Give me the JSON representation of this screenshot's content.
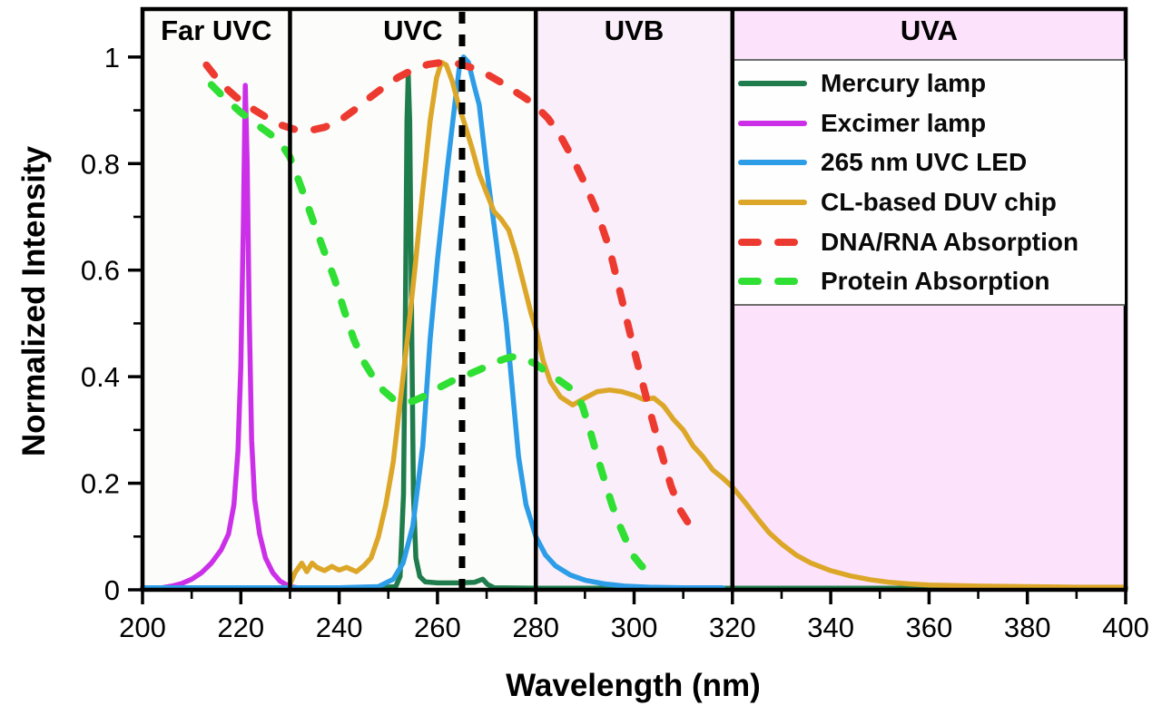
{
  "figure": {
    "x_axis_title": "Wavelength (nm)",
    "y_axis_title": "Normalized Intensity"
  },
  "regions": [
    {
      "label": "Far UVC",
      "from": 200,
      "to": 230,
      "fill": "#fcfcfa"
    },
    {
      "label": "UVC",
      "from": 230,
      "to": 280,
      "fill": "#fcfcfa"
    },
    {
      "label": "UVB",
      "from": 280,
      "to": 320,
      "fill": "#f9eef9"
    },
    {
      "label": "UVA",
      "from": 320,
      "to": 400,
      "fill": "#fce3fb"
    }
  ],
  "legend": {
    "items": [
      {
        "label": "Mercury lamp",
        "color": "#1f7d4d",
        "dashed": false
      },
      {
        "label": "Excimer lamp",
        "color": "#cb30e8",
        "dashed": false
      },
      {
        "label": "265 nm UVC LED",
        "color": "#2d9de8",
        "dashed": false
      },
      {
        "label": "CL-based DUV chip",
        "color": "#dca728",
        "dashed": false
      },
      {
        "label": "DNA/RNA Absorption",
        "color": "#ed3a30",
        "dashed": true
      },
      {
        "label": "Protein Absorption",
        "color": "#2fdf33",
        "dashed": true
      }
    ]
  },
  "chart_data": {
    "type": "line",
    "title": "",
    "xlabel": "Wavelength (nm)",
    "ylabel": "Normalized Intensity",
    "x_range": [
      200,
      400
    ],
    "y_range": [
      0,
      1.09
    ],
    "grid": false,
    "legend_position": "upper right",
    "x_major_ticks": [
      200,
      220,
      240,
      260,
      280,
      300,
      320,
      340,
      360,
      380,
      400
    ],
    "x_minor_ticks": [
      210,
      230,
      250,
      270,
      290,
      310,
      330,
      350,
      370,
      390
    ],
    "y_major_tick_values": [
      0,
      0.2,
      0.4,
      0.6,
      0.8,
      1
    ],
    "y_major_tick_labels": [
      "0",
      "0.2",
      "0.4",
      "0.6",
      "0.8",
      "1"
    ],
    "y_minor_ticks": [
      0.1,
      0.3,
      0.5,
      0.7,
      0.9
    ],
    "region_boundaries_nm": [
      230,
      280,
      320
    ],
    "reference_line": {
      "x": 265,
      "style": "dotted",
      "color": "#000000"
    },
    "series": [
      {
        "name": "Mercury lamp",
        "color": "#1f7d4d",
        "dashed": false,
        "width": 5.5,
        "points": [
          [
            246,
            0.003
          ],
          [
            251.5,
            0.006
          ],
          [
            252.4,
            0.025
          ],
          [
            253.1,
            0.18
          ],
          [
            253.5,
            0.55
          ],
          [
            253.8,
            0.88
          ],
          [
            254.05,
            0.967
          ],
          [
            254.35,
            0.88
          ],
          [
            254.7,
            0.55
          ],
          [
            255.1,
            0.18
          ],
          [
            255.6,
            0.06
          ],
          [
            256.4,
            0.025
          ],
          [
            257.5,
            0.015
          ],
          [
            260,
            0.013
          ],
          [
            264,
            0.013
          ],
          [
            267.5,
            0.014
          ],
          [
            269.2,
            0.02
          ],
          [
            270.2,
            0.01
          ],
          [
            271.5,
            0.004
          ],
          [
            280,
            0.003
          ],
          [
            320,
            0.003
          ],
          [
            360,
            0.003
          ],
          [
            400,
            0.003
          ]
        ]
      },
      {
        "name": "Excimer lamp",
        "color": "#cb30e8",
        "dashed": false,
        "width": 5.5,
        "points": [
          [
            200,
            0.003
          ],
          [
            204,
            0.004
          ],
          [
            206,
            0.007
          ],
          [
            208,
            0.012
          ],
          [
            210,
            0.02
          ],
          [
            212,
            0.032
          ],
          [
            214,
            0.05
          ],
          [
            216,
            0.075
          ],
          [
            217.5,
            0.105
          ],
          [
            218.6,
            0.16
          ],
          [
            219.4,
            0.26
          ],
          [
            220,
            0.42
          ],
          [
            220.5,
            0.68
          ],
          [
            220.9,
            0.947
          ],
          [
            221.3,
            0.8
          ],
          [
            221.7,
            0.52
          ],
          [
            222.2,
            0.28
          ],
          [
            222.8,
            0.17
          ],
          [
            223.8,
            0.105
          ],
          [
            225,
            0.06
          ],
          [
            226.5,
            0.032
          ],
          [
            228,
            0.016
          ],
          [
            230,
            0.006
          ],
          [
            232,
            0.003
          ]
        ]
      },
      {
        "name": "265 nm UVC LED",
        "color": "#2d9de8",
        "dashed": false,
        "width": 5.5,
        "points": [
          [
            200,
            0.004
          ],
          [
            240,
            0.004
          ],
          [
            248,
            0.006
          ],
          [
            251,
            0.02
          ],
          [
            253,
            0.05
          ],
          [
            255,
            0.12
          ],
          [
            257,
            0.27
          ],
          [
            258.5,
            0.47
          ],
          [
            260,
            0.62
          ],
          [
            262,
            0.79
          ],
          [
            263.5,
            0.91
          ],
          [
            264.5,
            0.985
          ],
          [
            265.3,
            1.0
          ],
          [
            266.3,
            0.99
          ],
          [
            267.5,
            0.945
          ],
          [
            268.5,
            0.91
          ],
          [
            270,
            0.79
          ],
          [
            272,
            0.65
          ],
          [
            274,
            0.5
          ],
          [
            275.5,
            0.35
          ],
          [
            276.5,
            0.25
          ],
          [
            278,
            0.16
          ],
          [
            280,
            0.1
          ],
          [
            282,
            0.065
          ],
          [
            284,
            0.045
          ],
          [
            287,
            0.028
          ],
          [
            290,
            0.018
          ],
          [
            294,
            0.011
          ],
          [
            298,
            0.007
          ],
          [
            303,
            0.005
          ],
          [
            310,
            0.004
          ],
          [
            318,
            0.004
          ]
        ]
      },
      {
        "name": "CL-based DUV chip",
        "color": "#dca728",
        "dashed": false,
        "width": 5.5,
        "points": [
          [
            230,
            0.01
          ],
          [
            231,
            0.032
          ],
          [
            232.4,
            0.05
          ],
          [
            233.4,
            0.034
          ],
          [
            234.5,
            0.05
          ],
          [
            235.5,
            0.042
          ],
          [
            237,
            0.036
          ],
          [
            238.5,
            0.044
          ],
          [
            240,
            0.037
          ],
          [
            241.5,
            0.042
          ],
          [
            243.5,
            0.034
          ],
          [
            245,
            0.045
          ],
          [
            246.5,
            0.06
          ],
          [
            248,
            0.1
          ],
          [
            249.5,
            0.16
          ],
          [
            251,
            0.24
          ],
          [
            252.5,
            0.36
          ],
          [
            254,
            0.48
          ],
          [
            255.5,
            0.61
          ],
          [
            257,
            0.75
          ],
          [
            258.5,
            0.88
          ],
          [
            259.8,
            0.96
          ],
          [
            260.8,
            0.99
          ],
          [
            261.8,
            0.985
          ],
          [
            263,
            0.955
          ],
          [
            264.3,
            0.91
          ],
          [
            265.5,
            0.875
          ],
          [
            267,
            0.83
          ],
          [
            268.5,
            0.78
          ],
          [
            270,
            0.745
          ],
          [
            271.5,
            0.71
          ],
          [
            273,
            0.695
          ],
          [
            274.5,
            0.675
          ],
          [
            276,
            0.63
          ],
          [
            277.5,
            0.575
          ],
          [
            279,
            0.52
          ],
          [
            280,
            0.49
          ],
          [
            281.5,
            0.43
          ],
          [
            283,
            0.39
          ],
          [
            285,
            0.362
          ],
          [
            287.5,
            0.347
          ],
          [
            290,
            0.36
          ],
          [
            292.5,
            0.372
          ],
          [
            295,
            0.375
          ],
          [
            297.5,
            0.372
          ],
          [
            300,
            0.365
          ],
          [
            302,
            0.357
          ],
          [
            304,
            0.36
          ],
          [
            306,
            0.345
          ],
          [
            308,
            0.32
          ],
          [
            310,
            0.3
          ],
          [
            312,
            0.27
          ],
          [
            314,
            0.25
          ],
          [
            316,
            0.225
          ],
          [
            318,
            0.21
          ],
          [
            320,
            0.193
          ],
          [
            322.5,
            0.165
          ],
          [
            325,
            0.135
          ],
          [
            327.5,
            0.107
          ],
          [
            330,
            0.086
          ],
          [
            333,
            0.065
          ],
          [
            336,
            0.05
          ],
          [
            340,
            0.036
          ],
          [
            344,
            0.026
          ],
          [
            348,
            0.019
          ],
          [
            352,
            0.014
          ],
          [
            356,
            0.011
          ],
          [
            360,
            0.009
          ],
          [
            370,
            0.007
          ],
          [
            380,
            0.006
          ],
          [
            390,
            0.005
          ],
          [
            400,
            0.005
          ]
        ]
      },
      {
        "name": "DNA/RNA Absorption",
        "color": "#ed3a30",
        "dashed": true,
        "width": 8,
        "points": [
          [
            213,
            0.985
          ],
          [
            216,
            0.95
          ],
          [
            219,
            0.925
          ],
          [
            222,
            0.905
          ],
          [
            225,
            0.888
          ],
          [
            228,
            0.873
          ],
          [
            231,
            0.864
          ],
          [
            234,
            0.862
          ],
          [
            237,
            0.868
          ],
          [
            240,
            0.88
          ],
          [
            243,
            0.9
          ],
          [
            246,
            0.922
          ],
          [
            249,
            0.943
          ],
          [
            252,
            0.962
          ],
          [
            255,
            0.976
          ],
          [
            258,
            0.986
          ],
          [
            261,
            0.99
          ],
          [
            264,
            0.988
          ],
          [
            267,
            0.98
          ],
          [
            270,
            0.968
          ],
          [
            273,
            0.952
          ],
          [
            276,
            0.934
          ],
          [
            278,
            0.922
          ],
          [
            280,
            0.908
          ],
          [
            282.5,
            0.885
          ],
          [
            285,
            0.852
          ],
          [
            287.5,
            0.81
          ],
          [
            290,
            0.762
          ],
          [
            292.5,
            0.708
          ],
          [
            295,
            0.64
          ],
          [
            297.5,
            0.545
          ],
          [
            300,
            0.45
          ],
          [
            302.5,
            0.36
          ],
          [
            305,
            0.275
          ],
          [
            307.5,
            0.195
          ],
          [
            309.5,
            0.148
          ],
          [
            311.5,
            0.118
          ]
        ]
      },
      {
        "name": "Protein Absorption",
        "color": "#2fdf33",
        "dashed": true,
        "width": 8,
        "points": [
          [
            214,
            0.948
          ],
          [
            217,
            0.92
          ],
          [
            220,
            0.896
          ],
          [
            223,
            0.875
          ],
          [
            226,
            0.855
          ],
          [
            228.5,
            0.833
          ],
          [
            230,
            0.812
          ],
          [
            231.5,
            0.775
          ],
          [
            233,
            0.737
          ],
          [
            235,
            0.685
          ],
          [
            237,
            0.634
          ],
          [
            239,
            0.585
          ],
          [
            241,
            0.525
          ],
          [
            243,
            0.47
          ],
          [
            245,
            0.428
          ],
          [
            247,
            0.398
          ],
          [
            249,
            0.374
          ],
          [
            251,
            0.358
          ],
          [
            253,
            0.352
          ],
          [
            255,
            0.354
          ],
          [
            257,
            0.362
          ],
          [
            260,
            0.378
          ],
          [
            263,
            0.392
          ],
          [
            266,
            0.403
          ],
          [
            269,
            0.415
          ],
          [
            272,
            0.428
          ],
          [
            274.5,
            0.436
          ],
          [
            276,
            0.438
          ],
          [
            278,
            0.432
          ],
          [
            280,
            0.424
          ],
          [
            282,
            0.41
          ],
          [
            284,
            0.398
          ],
          [
            286,
            0.385
          ],
          [
            288,
            0.372
          ],
          [
            289.5,
            0.345
          ],
          [
            291,
            0.3
          ],
          [
            292.5,
            0.25
          ],
          [
            294,
            0.205
          ],
          [
            295.5,
            0.16
          ],
          [
            297,
            0.122
          ],
          [
            298.5,
            0.09
          ],
          [
            300,
            0.062
          ],
          [
            301.5,
            0.045
          ],
          [
            303,
            0.032
          ]
        ]
      }
    ]
  }
}
